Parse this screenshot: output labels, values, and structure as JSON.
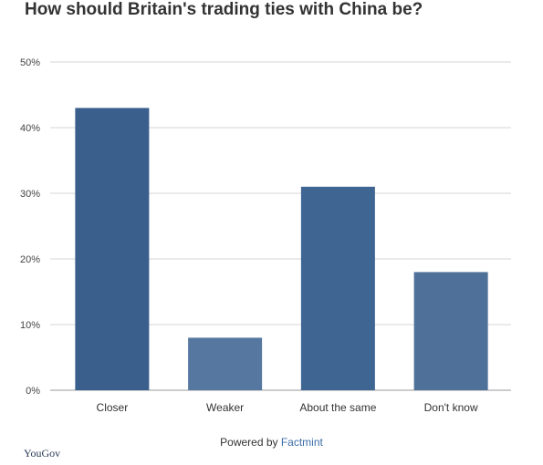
{
  "colors": {
    "bar_dark": "#3a5f8d",
    "bar_light": "#5677a0",
    "grid": "#d4d4d4",
    "axis": "#999999"
  },
  "footer": {
    "powered_by": "Powered by ",
    "brand": "Factmint"
  },
  "logo": {
    "text": "YouGov"
  },
  "chart_data": {
    "type": "bar",
    "title": "How should Britain's trading ties with China be?",
    "xlabel": "",
    "ylabel": "",
    "categories": [
      "Closer",
      "Weaker",
      "About the same",
      "Don't know"
    ],
    "values": [
      43,
      8,
      31,
      18
    ],
    "bar_colors": [
      "#3a5f8d",
      "#5677a0",
      "#3f6592",
      "#4f7199"
    ],
    "yticks": [
      "0%",
      "10%",
      "20%",
      "30%",
      "40%",
      "50%"
    ],
    "ylim": [
      0,
      50
    ],
    "grid": true
  }
}
